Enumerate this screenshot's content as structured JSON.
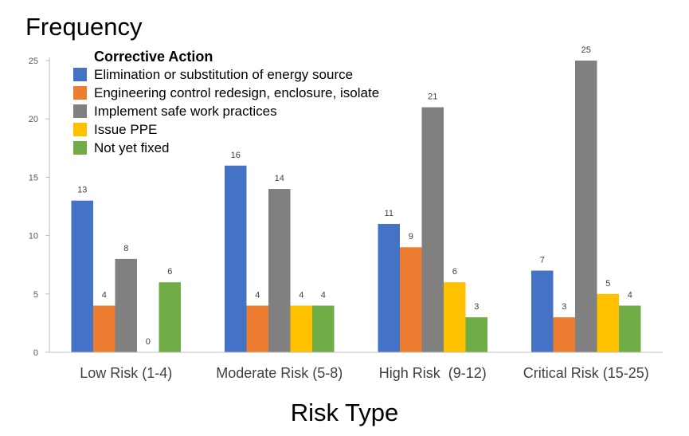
{
  "chart_data": {
    "type": "bar",
    "title": "",
    "ylabel": "Frequency",
    "xlabel": "Risk Type",
    "ylim": [
      0,
      25
    ],
    "yticks": [
      0,
      5,
      10,
      15,
      20,
      25
    ],
    "grid": false,
    "legend_position": "top-left",
    "legend_title": "Corrective Action",
    "categories": [
      "Low Risk (1-4)",
      "Moderate Risk (5-8)",
      "High Risk  (9-12)",
      "Critical Risk (15-25)"
    ],
    "series": [
      {
        "name": "Elimination or substitution of energy source",
        "color": "#4472C4",
        "values": [
          13,
          16,
          11,
          7
        ],
        "labels": [
          "13",
          "16",
          "11",
          "7"
        ]
      },
      {
        "name": "Engineering control redesign, enclosure, isolate",
        "color": "#ED7D31",
        "values": [
          4,
          4,
          9,
          3
        ],
        "labels": [
          "4",
          "4",
          "9",
          "3"
        ]
      },
      {
        "name": "Implement safe work practices",
        "color": "#808080",
        "values": [
          8,
          14,
          21,
          25
        ],
        "labels": [
          "8",
          "14",
          "21",
          "25"
        ]
      },
      {
        "name": "Issue PPE",
        "color": "#FFC000",
        "values": [
          0,
          4,
          6,
          5
        ],
        "labels": [
          "0",
          "4",
          "6",
          "5"
        ]
      },
      {
        "name": "Not yet fixed",
        "color": "#70AD47",
        "values": [
          6,
          4,
          3,
          4
        ],
        "labels": [
          "6",
          "4",
          "3",
          "4"
        ]
      }
    ]
  }
}
